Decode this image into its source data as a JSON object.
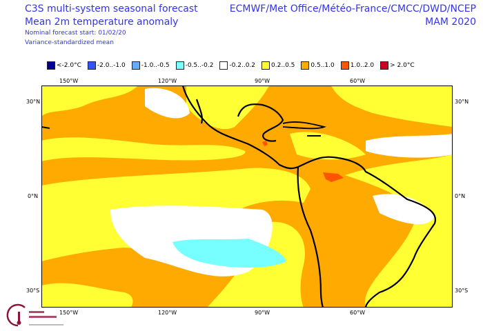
{
  "header": {
    "title": "C3S multi-system seasonal forecast",
    "subtitle": "Mean 2m temperature anomaly",
    "forecast_start": "Nominal forecast start: 01/02/20",
    "method": "Variance-standardized mean",
    "systems": "ECMWF/Met Office/Météo-France/CMCC/DWD/NCEP",
    "season": "MAM 2020"
  },
  "legend": [
    {
      "label": "<-2.0°C",
      "color": "#000099"
    },
    {
      "label": "-2.0..-1.0",
      "color": "#3355ff"
    },
    {
      "label": "-1.0..-0.5",
      "color": "#66aaff"
    },
    {
      "label": "-0.5..-0.2",
      "color": "#77ffff"
    },
    {
      "label": "-0.2..0.2",
      "color": "#ffffff"
    },
    {
      "label": "0.2..0.5",
      "color": "#ffff33"
    },
    {
      "label": "0.5..1.0",
      "color": "#ffaa00"
    },
    {
      "label": "1.0..2.0",
      "color": "#ff5500"
    },
    {
      "label": "> 2.0°C",
      "color": "#cc0022"
    }
  ],
  "axes": {
    "lon_labels": [
      "150°W",
      "120°W",
      "90°W",
      "60°W"
    ],
    "lat_labels": [
      "30°N",
      "0°N",
      "30°S"
    ]
  },
  "logo": {
    "text": "Climate Change Service"
  }
}
